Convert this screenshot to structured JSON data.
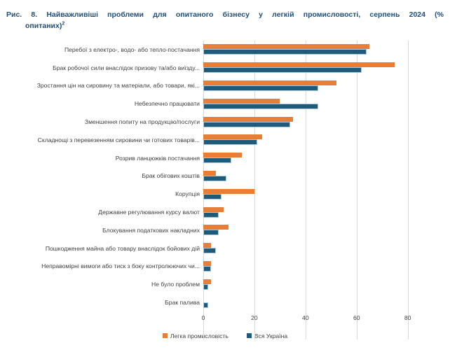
{
  "header": {
    "title_line1": "Рис. 8. Найважливіші проблеми для опитаного бізнесу у легкій промисловості, серпень 2024 (%",
    "title_line2": "опитаних)",
    "title_superscript": "2"
  },
  "chart_data": {
    "type": "bar",
    "orientation": "horizontal",
    "title": "Рис. 8. Найважливіші проблеми для опитаного бізнесу у легкій промисловості, серпень 2024 (% опитаних)",
    "categories": [
      "Перебої з електро-, водо- або тепло-постачання",
      "Брак робочої сили внаслідок призову та/або виїзду...",
      "Зростання цін на сировину та матеріали, або товари, які...",
      "Небезпечно працювати",
      "Зменшення попиту на продукцію/послуги",
      "Складнощі з перевезенням сировини чи готових товарів...",
      "Розрив ланцюжків постачання",
      "Брак обігових коштів",
      "Корупція",
      "Державне регулювання курсу валют",
      "Блокування податкових накладних",
      "Пошкодження майна або товару внаслідок бойових дій",
      "Неправомірні вимоги або тиск з боку контролюючих чи...",
      "Не було проблем",
      "Брак палива"
    ],
    "series": [
      {
        "name": "Легка промисловість",
        "color": "#E87E35",
        "values": [
          65,
          75,
          52,
          30,
          35,
          23,
          15,
          5,
          20,
          8,
          10,
          3,
          3,
          3,
          0
        ]
      },
      {
        "name": "Вся Україна",
        "color": "#1F5B78",
        "values": [
          64,
          62,
          45,
          45,
          34,
          21,
          11,
          9,
          7,
          6,
          6,
          5,
          3,
          2,
          2
        ]
      }
    ],
    "xlabel": "",
    "ylabel": "",
    "xlim": [
      0,
      96
    ],
    "xticks": [
      0,
      20,
      40,
      60,
      80
    ],
    "grid": "vertical",
    "legend_position": "bottom"
  },
  "colors": {
    "title": "#1F4E79",
    "axis_text": "#404040",
    "gridline": "#D9D9D9",
    "series_light_industry": "#E87E35",
    "series_all_ukraine": "#1F5B78"
  }
}
